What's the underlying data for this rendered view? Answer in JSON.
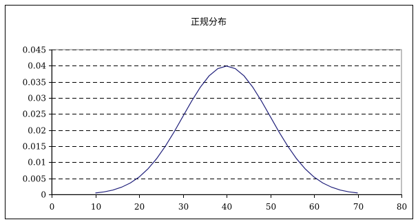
{
  "chart_data": {
    "type": "line",
    "title": "正规分布",
    "xlabel": "",
    "ylabel": "",
    "xlim": [
      0,
      80
    ],
    "ylim": [
      0,
      0.045
    ],
    "x_ticks": [
      "0",
      "10",
      "20",
      "30",
      "40",
      "50",
      "60",
      "70",
      "80"
    ],
    "y_ticks": [
      "0",
      "0.005",
      "0.01",
      "0.015",
      "0.02",
      "0.025",
      "0.03",
      "0.035",
      "0.04",
      "0.045"
    ],
    "grid": "horizontal-dashed",
    "legend": "none",
    "series": [
      {
        "color": "#1f1f7a",
        "x": [
          10,
          12,
          14,
          16,
          18,
          20,
          22,
          24,
          26,
          28,
          30,
          32,
          34,
          36,
          38,
          40,
          42,
          44,
          46,
          48,
          50,
          52,
          54,
          56,
          58,
          60,
          62,
          64,
          66,
          68,
          70
        ],
        "y": [
          0.00044,
          0.00079,
          0.00136,
          0.00224,
          0.00355,
          0.0054,
          0.0079,
          0.01109,
          0.01497,
          0.01942,
          0.0242,
          0.02897,
          0.03333,
          0.03683,
          0.03911,
          0.03989,
          0.03911,
          0.03683,
          0.03333,
          0.02897,
          0.0242,
          0.01942,
          0.01497,
          0.01109,
          0.0079,
          0.0054,
          0.00355,
          0.00224,
          0.00136,
          0.00079,
          0.00044
        ]
      }
    ]
  }
}
